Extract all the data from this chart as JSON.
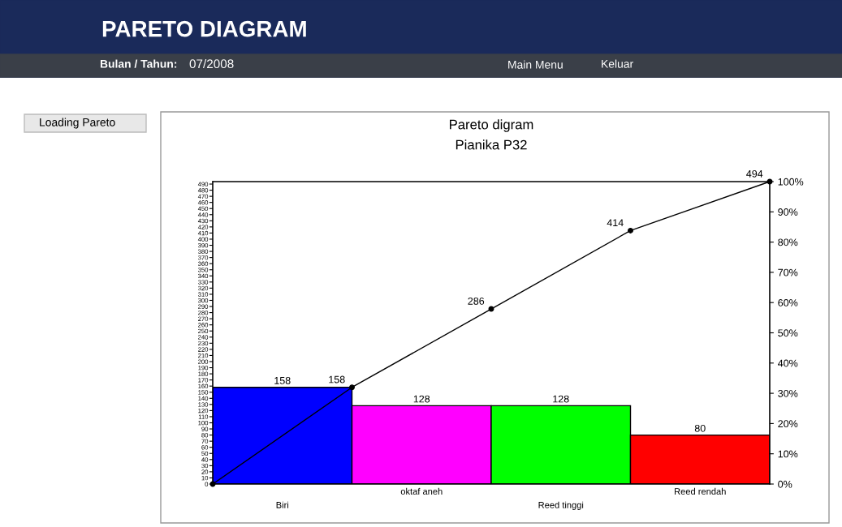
{
  "chart_data": {
    "type": "bar",
    "title": "Pareto digram",
    "subtitle": "Pianika P32",
    "annotations": [
      "PARETO DIAGRAM",
      "Bulan / Tahun:",
      "07/2008",
      "Main Menu",
      "Keluar",
      "Loading Pareto"
    ],
    "categories": [
      null,
      "Biri",
      null,
      "oktaf aneh",
      null,
      "Reed tinggi",
      null,
      "Reed rendah",
      null
    ],
    "series": [
      {
        "colors": [
          null,
          "#0000ff",
          null,
          "#ff00ff",
          null,
          "#00ff00",
          null,
          "#ff0000",
          null
        ],
        "values": [
          null,
          158,
          null,
          128,
          null,
          128,
          null,
          80,
          null
        ],
        "value_labels": [
          null,
          "158",
          null,
          "128",
          null,
          "128",
          null,
          "80",
          null
        ]
      },
      {
        "type": "line",
        "color": "#000000",
        "values": [
          0,
          null,
          158,
          null,
          286,
          null,
          414,
          null,
          494
        ],
        "value_labels": [
          null,
          null,
          "158",
          null,
          "286",
          null,
          "414",
          null,
          "494"
        ]
      }
    ],
    "ylim": [
      0,
      494
    ],
    "yticks": [
      0,
      10,
      20,
      30,
      40,
      50,
      60,
      70,
      80,
      90,
      100,
      110,
      120,
      130,
      140,
      150,
      160,
      170,
      180,
      190,
      200,
      210,
      220,
      230,
      240,
      250,
      260,
      270,
      280,
      290,
      300,
      310,
      320,
      330,
      340,
      350,
      360,
      370,
      380,
      390,
      400,
      410,
      420,
      430,
      440,
      450,
      460,
      470,
      480,
      490
    ],
    "y2lim": [
      0,
      100
    ],
    "y2ticks": [
      {
        "value": 0,
        "label": "0%"
      },
      {
        "value": 10,
        "label": "10%"
      },
      {
        "value": 20,
        "label": "20%"
      },
      {
        "value": 30,
        "label": "30%"
      },
      {
        "value": 40,
        "label": "40%"
      },
      {
        "value": 50,
        "label": "50%"
      },
      {
        "value": 60,
        "label": "60%"
      },
      {
        "value": 70,
        "label": "70%"
      },
      {
        "value": 80,
        "label": "80%"
      },
      {
        "value": 90,
        "label": "90%"
      },
      {
        "value": 100,
        "label": "100%"
      }
    ],
    "marker": "circle",
    "grid": false,
    "legend": false
  }
}
